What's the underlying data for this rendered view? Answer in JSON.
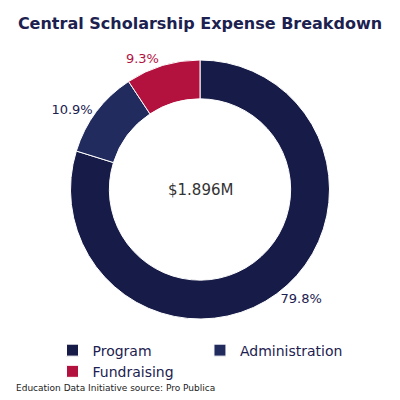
{
  "chart_data": {
    "type": "pie",
    "title": "Central Scholarship Expense Breakdown",
    "center_text": "$1.896M",
    "source": "Education Data Initiative source: Pro Publica",
    "categories": [
      "Program",
      "Administration",
      "Fundraising"
    ],
    "values": [
      79.8,
      10.9,
      9.3
    ],
    "value_labels": [
      "79.8%",
      "10.9%",
      "9.3%"
    ],
    "colors": [
      "#171b47",
      "#222b5e",
      "#b3123f"
    ],
    "data_labels": true,
    "legend": "bottom"
  }
}
